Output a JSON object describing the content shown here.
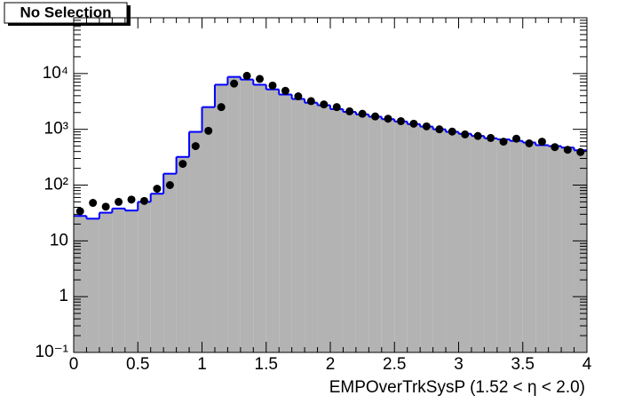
{
  "chart_data": {
    "type": "histogram",
    "title": "No Selection",
    "xlabel": "EMPOverTrkSysP (1.52 <   η < 2.0)",
    "bins": [
      0,
      0.1,
      0.2,
      0.3,
      0.4,
      0.5,
      0.6,
      0.7,
      0.8,
      0.9,
      1,
      1.1,
      1.2,
      1.3,
      1.4,
      1.5,
      1.6,
      1.7,
      1.8,
      1.9,
      2,
      2.1,
      2.2,
      2.3,
      2.4,
      2.5,
      2.6,
      2.7,
      2.8,
      2.9,
      3,
      3.1,
      3.2,
      3.3,
      3.4,
      3.5,
      3.6,
      3.7,
      3.8,
      3.9,
      4
    ],
    "series": [
      {
        "style": "filled-step",
        "color": "#0000ff",
        "fill": "#b3b3b3",
        "values": [
          28,
          25,
          32,
          38,
          35,
          50,
          70,
          160,
          320,
          900,
          2500,
          6300,
          8700,
          7800,
          6300,
          5200,
          4200,
          3500,
          3000,
          2700,
          2300,
          2050,
          1850,
          1680,
          1520,
          1380,
          1240,
          1120,
          1000,
          900,
          830,
          760,
          690,
          660,
          620,
          580,
          520,
          500,
          470,
          420
        ]
      },
      {
        "style": "points",
        "color": "#000000",
        "values": [
          34,
          48,
          41,
          50,
          55,
          52,
          86,
          100,
          240,
          500,
          940,
          2500,
          6600,
          9100,
          8000,
          6100,
          4900,
          3900,
          3200,
          2800,
          2500,
          2100,
          1900,
          1700,
          1550,
          1400,
          1260,
          1130,
          1000,
          910,
          810,
          760,
          700,
          600,
          680,
          560,
          600,
          480,
          430,
          390
        ]
      }
    ],
    "xlim": [
      0,
      4
    ],
    "xticks": [
      0,
      0.5,
      1,
      1.5,
      2,
      2.5,
      3,
      3.5,
      4
    ],
    "ylim": [
      0.1,
      100000
    ],
    "ylog": true,
    "yticks": [
      {
        "value": 0.1,
        "label": "10⁻¹"
      },
      1,
      10,
      {
        "value": 100,
        "label": "10²"
      },
      {
        "value": 1000,
        "label": "10³"
      },
      {
        "value": 10000,
        "label": "10⁴"
      }
    ]
  }
}
